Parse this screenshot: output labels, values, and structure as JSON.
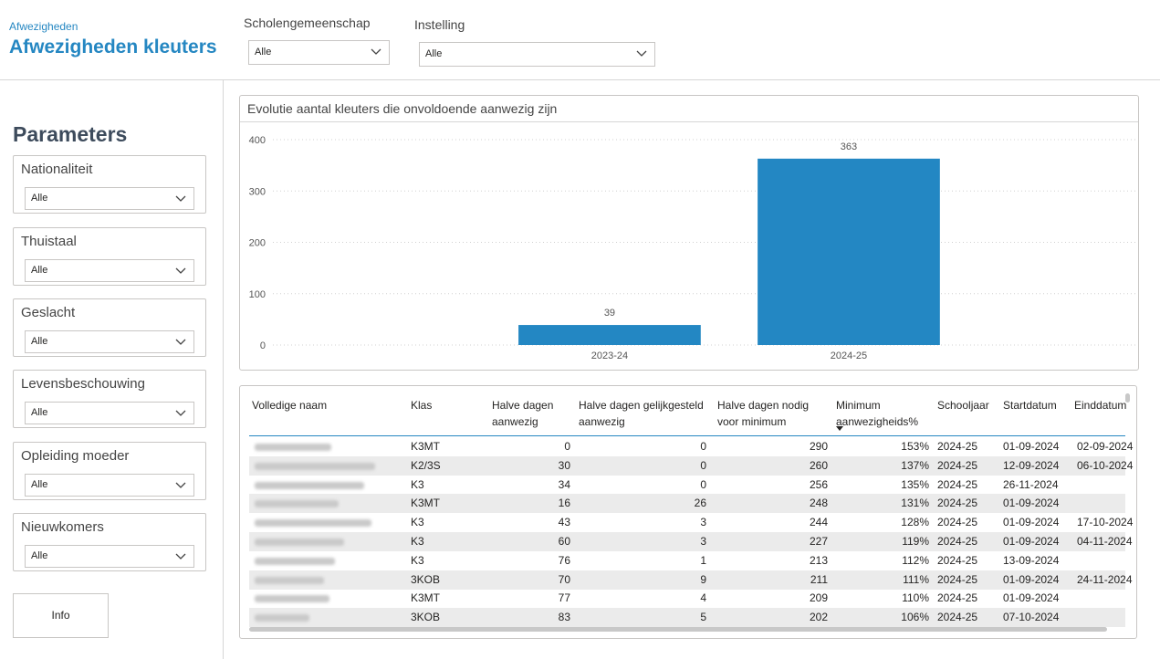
{
  "header": {
    "breadcrumb": "Afwezigheden",
    "title": "Afwezigheden kleuters"
  },
  "filters": {
    "scholengemeenschap": {
      "label": "Scholengemeenschap",
      "value": "Alle"
    },
    "instelling": {
      "label": "Instelling",
      "value": "Alle"
    }
  },
  "parameters": {
    "title": "Parameters",
    "items": [
      {
        "label": "Nationaliteit",
        "value": "Alle"
      },
      {
        "label": "Thuistaal",
        "value": "Alle"
      },
      {
        "label": "Geslacht",
        "value": "Alle"
      },
      {
        "label": "Levensbeschouwing",
        "value": "Alle"
      },
      {
        "label": "Opleiding moeder",
        "value": "Alle"
      },
      {
        "label": "Nieuwkomers",
        "value": "Alle"
      }
    ],
    "info_label": "Info"
  },
  "colors": {
    "accent": "#2587c2",
    "bar": "#2387c3"
  },
  "chart_data": {
    "type": "bar",
    "title": "Evolutie aantal kleuters die onvoldoende aanwezig zijn",
    "categories": [
      "2023-24",
      "2024-25"
    ],
    "values": [
      39,
      363
    ],
    "ylim": [
      0,
      400
    ],
    "yticks": [
      0,
      100,
      200,
      300,
      400
    ],
    "grid": true,
    "xlabel": "",
    "ylabel": ""
  },
  "table": {
    "columns": [
      "Volledige naam",
      "Klas",
      "Halve dagen aanwezig",
      "Halve dagen gelijkgesteld aanwezig",
      "Halve dagen nodig voor minimum",
      "Minimum aanwezigheids%",
      "Schooljaar",
      "Startdatum",
      "Einddatum"
    ],
    "sorted_column": "Minimum aanwezigheids%",
    "rows": [
      {
        "klas": "K3MT",
        "aanwezig": "0",
        "gelijkgesteld": "0",
        "nodig": "290",
        "pct": "153%",
        "jaar": "2024-25",
        "start": "01-09-2024",
        "eind": "02-09-2024"
      },
      {
        "klas": "K2/3S",
        "aanwezig": "30",
        "gelijkgesteld": "0",
        "nodig": "260",
        "pct": "137%",
        "jaar": "2024-25",
        "start": "12-09-2024",
        "eind": "06-10-2024"
      },
      {
        "klas": "K3",
        "aanwezig": "34",
        "gelijkgesteld": "0",
        "nodig": "256",
        "pct": "135%",
        "jaar": "2024-25",
        "start": "26-11-2024",
        "eind": ""
      },
      {
        "klas": "K3MT",
        "aanwezig": "16",
        "gelijkgesteld": "26",
        "nodig": "248",
        "pct": "131%",
        "jaar": "2024-25",
        "start": "01-09-2024",
        "eind": ""
      },
      {
        "klas": "K3",
        "aanwezig": "43",
        "gelijkgesteld": "3",
        "nodig": "244",
        "pct": "128%",
        "jaar": "2024-25",
        "start": "01-09-2024",
        "eind": "17-10-2024"
      },
      {
        "klas": "K3",
        "aanwezig": "60",
        "gelijkgesteld": "3",
        "nodig": "227",
        "pct": "119%",
        "jaar": "2024-25",
        "start": "01-09-2024",
        "eind": "04-11-2024"
      },
      {
        "klas": "K3",
        "aanwezig": "76",
        "gelijkgesteld": "1",
        "nodig": "213",
        "pct": "112%",
        "jaar": "2024-25",
        "start": "13-09-2024",
        "eind": ""
      },
      {
        "klas": "3KOB",
        "aanwezig": "70",
        "gelijkgesteld": "9",
        "nodig": "211",
        "pct": "111%",
        "jaar": "2024-25",
        "start": "01-09-2024",
        "eind": "24-11-2024"
      },
      {
        "klas": "K3MT",
        "aanwezig": "77",
        "gelijkgesteld": "4",
        "nodig": "209",
        "pct": "110%",
        "jaar": "2024-25",
        "start": "01-09-2024",
        "eind": ""
      },
      {
        "klas": "3KOB",
        "aanwezig": "83",
        "gelijkgesteld": "5",
        "nodig": "202",
        "pct": "106%",
        "jaar": "2024-25",
        "start": "07-10-2024",
        "eind": ""
      }
    ]
  }
}
